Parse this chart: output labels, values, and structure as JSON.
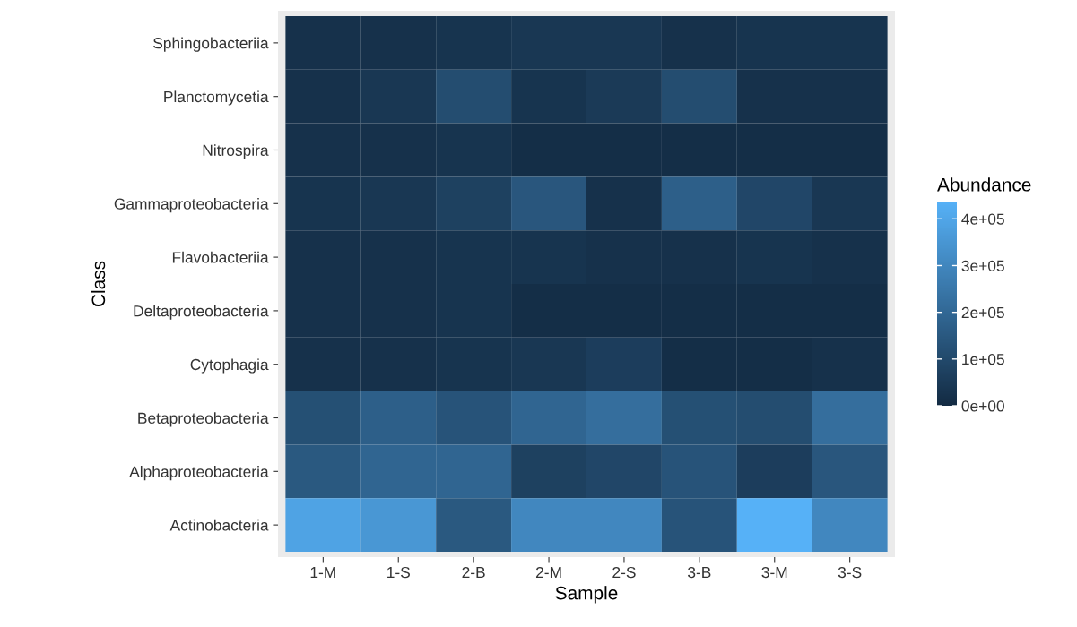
{
  "chart_data": {
    "type": "heatmap",
    "xlabel": "Sample",
    "ylabel": "Class",
    "clabel": "Abundance",
    "categories": [
      "1-M",
      "1-S",
      "2-B",
      "2-M",
      "2-S",
      "3-B",
      "3-M",
      "3-S"
    ],
    "y_categories": [
      "Sphingobacteriia",
      "Planctomycetia",
      "Nitrospira",
      "Gammaproteobacteria",
      "Flavobacteriia",
      "Deltaproteobacteria",
      "Cytophagia",
      "Betaproteobacteria",
      "Alphaproteobacteria",
      "Actinobacteria"
    ],
    "cells": [
      [
        20000,
        20000,
        30000,
        40000,
        40000,
        20000,
        30000,
        30000
      ],
      [
        20000,
        40000,
        110000,
        30000,
        50000,
        110000,
        20000,
        20000
      ],
      [
        20000,
        20000,
        30000,
        10000,
        10000,
        10000,
        10000,
        10000
      ],
      [
        30000,
        40000,
        70000,
        140000,
        20000,
        170000,
        90000,
        40000
      ],
      [
        20000,
        20000,
        30000,
        30000,
        20000,
        20000,
        30000,
        20000
      ],
      [
        20000,
        20000,
        30000,
        10000,
        10000,
        10000,
        10000,
        10000
      ],
      [
        20000,
        20000,
        30000,
        40000,
        60000,
        10000,
        10000,
        20000
      ],
      [
        120000,
        170000,
        130000,
        190000,
        220000,
        120000,
        110000,
        220000
      ],
      [
        150000,
        190000,
        190000,
        70000,
        90000,
        130000,
        60000,
        140000
      ],
      [
        390000,
        350000,
        150000,
        300000,
        300000,
        130000,
        437000,
        300000
      ]
    ],
    "clim": [
      0,
      437000
    ],
    "cticks": [
      {
        "value": 0,
        "label": "0e+00"
      },
      {
        "value": 100000,
        "label": "1e+05"
      },
      {
        "value": 200000,
        "label": "2e+05"
      },
      {
        "value": 300000,
        "label": "3e+05"
      },
      {
        "value": 400000,
        "label": "4e+05"
      }
    ],
    "colors": [
      "#132b43",
      "#56b1f7"
    ]
  }
}
